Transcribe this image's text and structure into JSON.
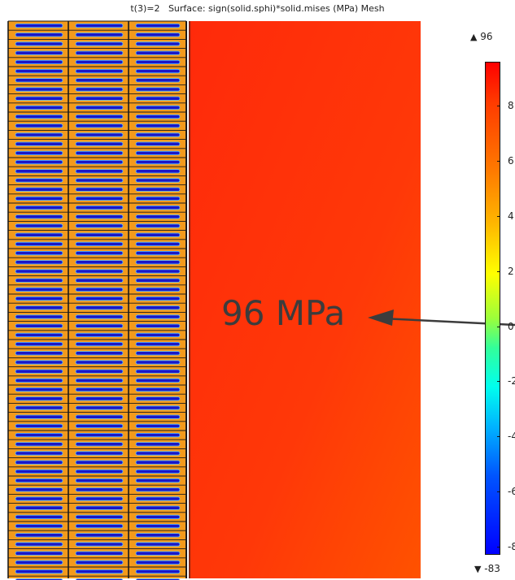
{
  "plot": {
    "title": "t(3)=2   Surface: sign(solid.sphi)*solid.mises (MPa) Mesh"
  },
  "annotation": {
    "callout_text": "96 MPa"
  },
  "colorbar": {
    "max_marker": "▲",
    "max_label": "96",
    "min_marker": "▼",
    "min_label": "-83",
    "tick_labels": [
      "8",
      "6",
      "4",
      "2",
      "0",
      "-2",
      "-4",
      "-6",
      "-8"
    ]
  },
  "colors": {
    "stress_surface_top": "#ff2a0a",
    "stress_surface_bottom": "#ff4a00",
    "mesh_orange": "#f39a1c",
    "mesh_blue": "#1a17c8",
    "mesh_line": "#1a1a1a",
    "arrow": "#3c3c3c"
  }
}
